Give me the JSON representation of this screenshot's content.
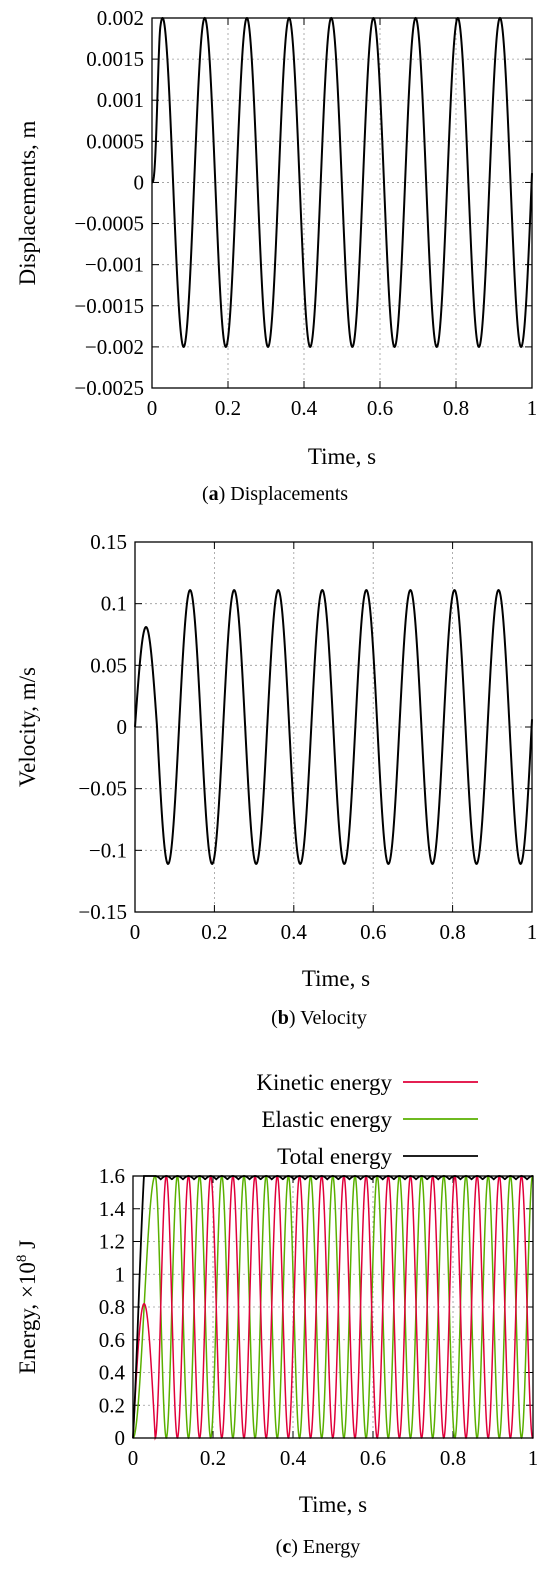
{
  "chart_data": [
    {
      "type": "line",
      "caption_letter": "a",
      "caption_text": "Displacements",
      "xlabel": "Time, s",
      "ylabel": "Displacements, m",
      "xlim": [
        0,
        1
      ],
      "ylim": [
        -0.0025,
        0.002
      ],
      "xticks": [
        0,
        0.2,
        0.4,
        0.6,
        0.8,
        1
      ],
      "xtick_labels": [
        "0",
        "0.2",
        "0.4",
        "0.6",
        "0.8",
        "1"
      ],
      "yticks": [
        0.002,
        0.0015,
        0.001,
        0.0005,
        0,
        -0.0005,
        -0.001,
        -0.0015,
        -0.002,
        -0.0025
      ],
      "ytick_labels": [
        "0.002",
        "0.0015",
        "0.001",
        "0.0005",
        "0",
        "−0.0005",
        "−0.001",
        "−0.0015",
        "−0.002",
        "−0.0025"
      ],
      "grid": true,
      "series": [
        {
          "color": "#000000",
          "amplitude": 0.002,
          "period": 0.111,
          "x": [
            0,
            0.0555,
            0.111,
            0.1665,
            0.222,
            0.2775,
            0.333,
            0.3885,
            0.444,
            0.4995,
            0.555,
            0.6105,
            0.666,
            0.7215,
            0.777,
            0.8325,
            0.888,
            0.9435,
            0.999
          ],
          "y": [
            0,
            0.002,
            -0.002,
            0.002,
            -0.002,
            0.002,
            -0.002,
            0.002,
            -0.002,
            0.002,
            -0.002,
            0.002,
            -0.002,
            0.002,
            -0.002,
            0.002,
            -0.002,
            0.002,
            -0.002
          ]
        }
      ]
    },
    {
      "type": "line",
      "caption_letter": "b",
      "caption_text": "Velocity",
      "xlabel": "Time, s",
      "ylabel": "Velocity, m/s",
      "xlim": [
        0,
        1
      ],
      "ylim": [
        -0.15,
        0.15
      ],
      "xticks": [
        0,
        0.2,
        0.4,
        0.6,
        0.8,
        1
      ],
      "xtick_labels": [
        "0",
        "0.2",
        "0.4",
        "0.6",
        "0.8",
        "1"
      ],
      "yticks": [
        0.15,
        0.1,
        0.05,
        0,
        -0.05,
        -0.1,
        -0.15
      ],
      "ytick_labels": [
        "0.15",
        "0.1",
        "0.05",
        "0",
        "−0.05",
        "−0.1",
        "−0.15"
      ],
      "grid": true,
      "series": [
        {
          "color": "#000000",
          "amplitude": 0.111,
          "period": 0.111,
          "x": [
            0,
            0.028,
            0.0555,
            0.083,
            0.111,
            0.1385,
            0.194,
            0.2495,
            0.305,
            0.3605,
            0.416,
            0.4715,
            0.527,
            0.5825,
            0.638,
            0.6935,
            0.749,
            0.8045,
            0.86,
            0.9155,
            0.971,
            1.0
          ],
          "y": [
            0,
            0.081,
            0,
            -0.111,
            0,
            0.111,
            -0.111,
            0.111,
            -0.111,
            0.111,
            -0.111,
            0.111,
            -0.111,
            0.111,
            -0.111,
            0.111,
            -0.111,
            0.111,
            -0.111,
            0.111,
            -0.111,
            0
          ]
        }
      ]
    },
    {
      "type": "line",
      "caption_letter": "c",
      "caption_text": "Energy",
      "xlabel": "Time, s",
      "ylabel_main": "Energy, ×10",
      "ylabel_exp": "8",
      "ylabel_unit": " J",
      "xlim": [
        0,
        1
      ],
      "ylim": [
        0,
        1.6
      ],
      "xticks": [
        0,
        0.2,
        0.4,
        0.6,
        0.8,
        1
      ],
      "xtick_labels": [
        "0",
        "0.2",
        "0.4",
        "0.6",
        "0.8",
        "1"
      ],
      "yticks": [
        1.6,
        1.4,
        1.2,
        1,
        0.8,
        0.6,
        0.4,
        0.2,
        0
      ],
      "ytick_labels": [
        "1.6",
        "1.4",
        "1.2",
        "1",
        "0.8",
        "0.6",
        "0.4",
        "0.2",
        "0"
      ],
      "grid": true,
      "legend_position": "top-right",
      "series": [
        {
          "name": "Kinetic energy",
          "color": "#e0003a",
          "peak": 1.6,
          "period": 0.0555,
          "x": [
            0,
            0.028,
            0.0555,
            0.083,
            0.111,
            0.1385,
            0.1665,
            0.194,
            0.222
          ],
          "y": [
            0,
            0.82,
            0,
            1.6,
            0,
            1.6,
            0,
            1.6,
            0
          ]
        },
        {
          "name": "Elastic energy",
          "color": "#5ab000",
          "peak": 1.6,
          "period": 0.0555,
          "x": [
            0,
            0.028,
            0.0555,
            0.083,
            0.111,
            0.1385,
            0.1665
          ],
          "y": [
            0,
            0.82,
            1.6,
            0,
            1.6,
            0,
            1.6
          ]
        },
        {
          "name": "Total energy",
          "color": "#000000",
          "x": [
            0,
            0.04,
            0.05,
            1.0
          ],
          "y": [
            0,
            1.58,
            1.6,
            1.6
          ]
        }
      ]
    }
  ]
}
